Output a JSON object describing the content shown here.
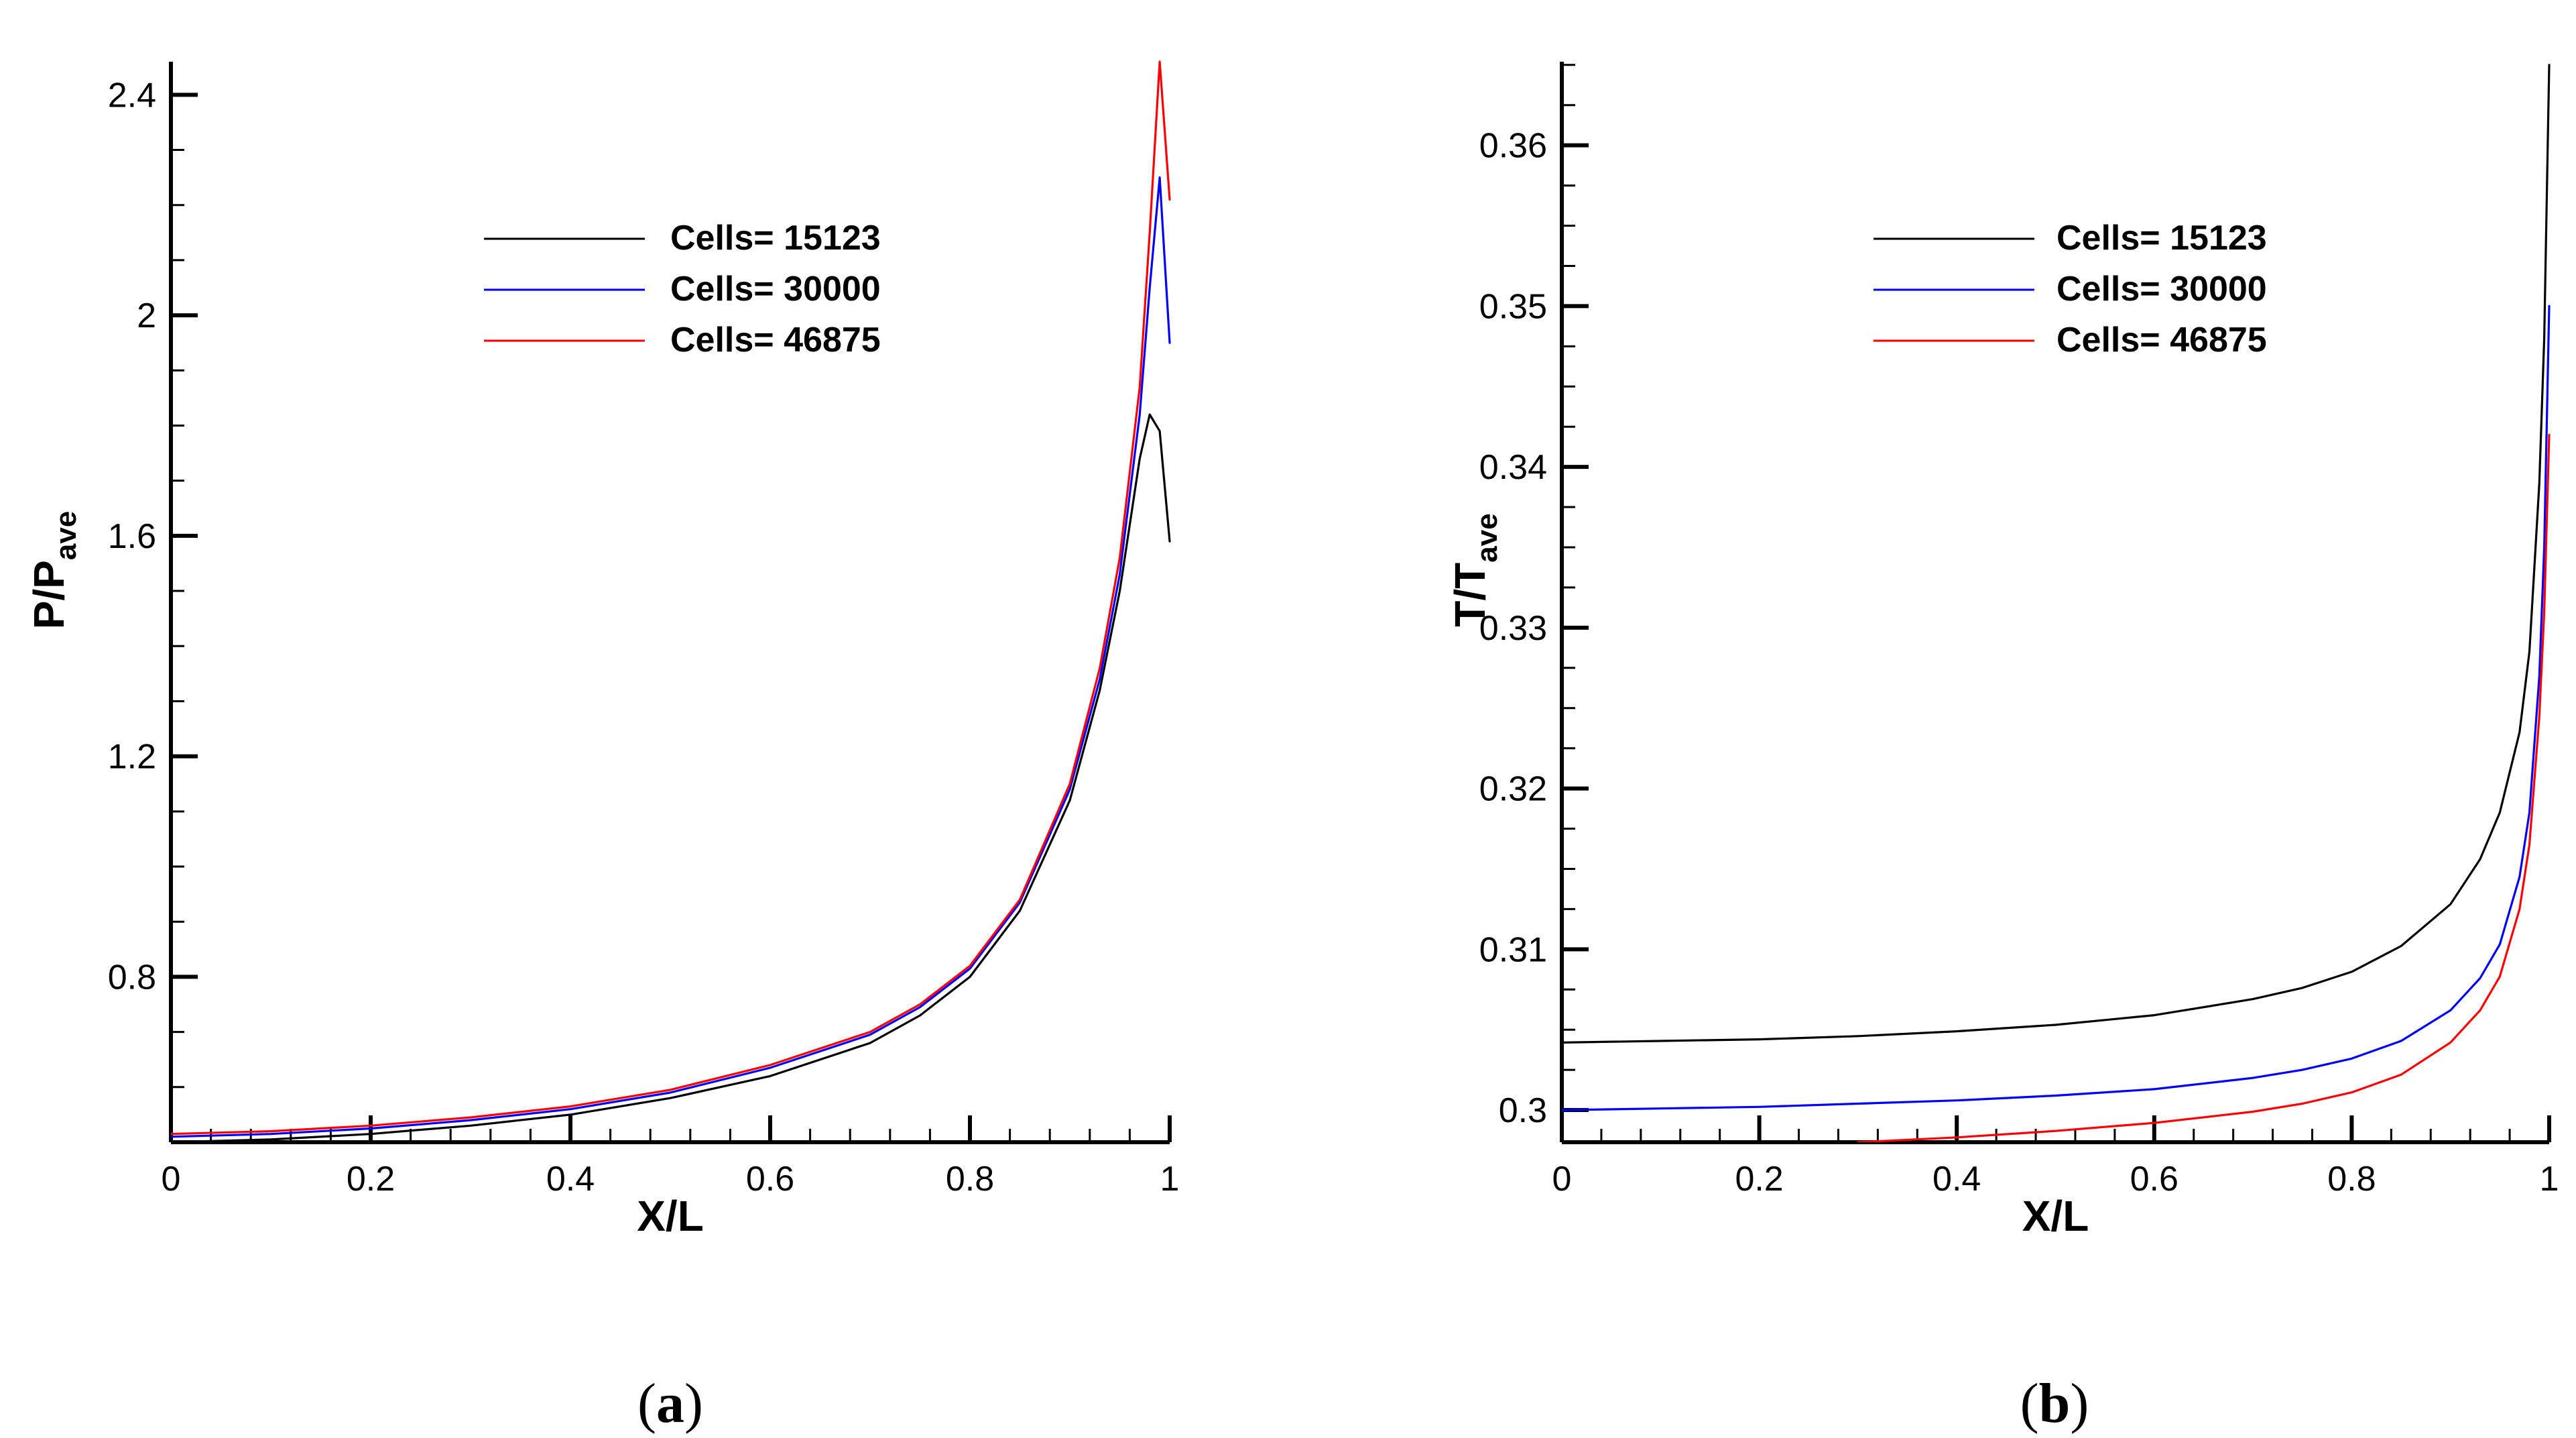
{
  "chart_data": [
    {
      "type": "line",
      "panel": "a",
      "caption_letter": "a",
      "xlabel": "X/L",
      "ylabel_main": "P/P",
      "ylabel_sub": "ave",
      "xlim": [
        0,
        1
      ],
      "ylim": [
        0.5,
        2.46
      ],
      "xticks": [
        0,
        0.2,
        0.4,
        0.6,
        0.8,
        1
      ],
      "xtick_labels": [
        "0",
        "0.2",
        "0.4",
        "0.6",
        "0.8",
        "1"
      ],
      "yticks": [
        0.8,
        1.2,
        1.6,
        2.0,
        2.4
      ],
      "ytick_labels": [
        "0.8",
        "1.2",
        "1.6",
        "2",
        "2.4"
      ],
      "legend_position": "top-center",
      "series": [
        {
          "name": "Cells= 15123",
          "color": "#000000",
          "x": [
            0,
            0.1,
            0.2,
            0.3,
            0.4,
            0.5,
            0.6,
            0.7,
            0.75,
            0.8,
            0.85,
            0.9,
            0.93,
            0.95,
            0.97,
            0.98,
            0.99,
            1.0
          ],
          "y": [
            0.5,
            0.505,
            0.515,
            0.53,
            0.55,
            0.58,
            0.62,
            0.68,
            0.73,
            0.8,
            0.92,
            1.12,
            1.32,
            1.5,
            1.74,
            1.82,
            1.79,
            1.59
          ]
        },
        {
          "name": "Cells= 30000",
          "color": "#0000ff",
          "x": [
            0,
            0.1,
            0.2,
            0.3,
            0.4,
            0.5,
            0.6,
            0.7,
            0.75,
            0.8,
            0.85,
            0.9,
            0.93,
            0.95,
            0.97,
            0.98,
            0.99,
            1.0
          ],
          "y": [
            0.51,
            0.515,
            0.525,
            0.54,
            0.56,
            0.59,
            0.635,
            0.695,
            0.745,
            0.815,
            0.935,
            1.14,
            1.34,
            1.53,
            1.82,
            2.05,
            2.25,
            1.95
          ]
        },
        {
          "name": "Cells= 46875",
          "color": "#ff0000",
          "x": [
            0,
            0.1,
            0.2,
            0.3,
            0.4,
            0.5,
            0.6,
            0.7,
            0.75,
            0.8,
            0.85,
            0.9,
            0.93,
            0.95,
            0.97,
            0.98,
            0.99,
            1.0
          ],
          "y": [
            0.515,
            0.52,
            0.53,
            0.545,
            0.565,
            0.595,
            0.64,
            0.7,
            0.75,
            0.82,
            0.94,
            1.15,
            1.36,
            1.56,
            1.87,
            2.15,
            2.46,
            2.21
          ]
        }
      ]
    },
    {
      "type": "line",
      "panel": "b",
      "caption_letter": "b",
      "xlabel": "X/L",
      "ylabel_main": "T/T",
      "ylabel_sub": "ave",
      "xlim": [
        0,
        1
      ],
      "ylim": [
        0.298,
        0.3652
      ],
      "xticks": [
        0,
        0.2,
        0.4,
        0.6,
        0.8,
        1
      ],
      "xtick_labels": [
        "0",
        "0.2",
        "0.4",
        "0.6",
        "0.8",
        "1"
      ],
      "yticks": [
        0.3,
        0.31,
        0.32,
        0.33,
        0.34,
        0.35,
        0.36
      ],
      "ytick_labels": [
        "0.3",
        "0.31",
        "0.32",
        "0.33",
        "0.34",
        "0.35",
        "0.36"
      ],
      "legend_position": "top-center",
      "series": [
        {
          "name": "Cells= 15123",
          "color": "#000000",
          "x": [
            0,
            0.1,
            0.2,
            0.3,
            0.4,
            0.5,
            0.6,
            0.7,
            0.75,
            0.8,
            0.85,
            0.9,
            0.93,
            0.95,
            0.97,
            0.98,
            0.99,
            0.995,
            1.0
          ],
          "y": [
            0.3042,
            0.3043,
            0.3044,
            0.3046,
            0.3049,
            0.3053,
            0.3059,
            0.3069,
            0.3076,
            0.3086,
            0.3102,
            0.3128,
            0.3156,
            0.3185,
            0.3235,
            0.3285,
            0.339,
            0.348,
            0.365
          ]
        },
        {
          "name": "Cells= 30000",
          "color": "#0000ff",
          "x": [
            0,
            0.1,
            0.2,
            0.3,
            0.4,
            0.5,
            0.6,
            0.7,
            0.75,
            0.8,
            0.85,
            0.9,
            0.93,
            0.95,
            0.97,
            0.98,
            0.99,
            0.995,
            1.0
          ],
          "y": [
            0.3,
            0.3001,
            0.3002,
            0.3004,
            0.3006,
            0.3009,
            0.3013,
            0.302,
            0.3025,
            0.3032,
            0.3043,
            0.3062,
            0.3082,
            0.3103,
            0.3145,
            0.3185,
            0.327,
            0.335,
            0.35
          ]
        },
        {
          "name": "Cells= 46875",
          "color": "#ff0000",
          "x": [
            0.3,
            0.4,
            0.5,
            0.6,
            0.7,
            0.75,
            0.8,
            0.85,
            0.9,
            0.93,
            0.95,
            0.97,
            0.98,
            0.99,
            0.995,
            1.0
          ],
          "y": [
            0.298,
            0.2983,
            0.2987,
            0.2992,
            0.2999,
            0.3004,
            0.3011,
            0.3022,
            0.3042,
            0.3062,
            0.3083,
            0.3125,
            0.3165,
            0.3245,
            0.331,
            0.342
          ]
        }
      ]
    }
  ]
}
